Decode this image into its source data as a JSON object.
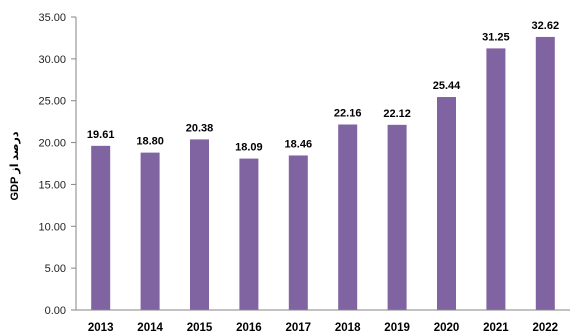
{
  "chart_data": {
    "type": "bar",
    "categories": [
      "2013",
      "2014",
      "2015",
      "2016",
      "2017",
      "2018",
      "2019",
      "2020",
      "2021",
      "2022"
    ],
    "values": [
      19.61,
      18.8,
      20.38,
      18.09,
      18.46,
      22.16,
      22.12,
      25.44,
      31.25,
      32.62
    ],
    "data_labels": [
      "19.61",
      "18.80",
      "20.38",
      "18.09",
      "18.46",
      "22.16",
      "22.12",
      "25.44",
      "31.25",
      "32.62"
    ],
    "ylabel": "درصد از GDP",
    "xlabel": "",
    "ylim": [
      0,
      35
    ],
    "yticks": [
      "0.00",
      "5.00",
      "10.00",
      "15.00",
      "20.00",
      "25.00",
      "30.00",
      "35.00"
    ],
    "grid": false,
    "legend": "none",
    "colors": {
      "bar": "#8064a2",
      "axis": "#868686"
    }
  }
}
